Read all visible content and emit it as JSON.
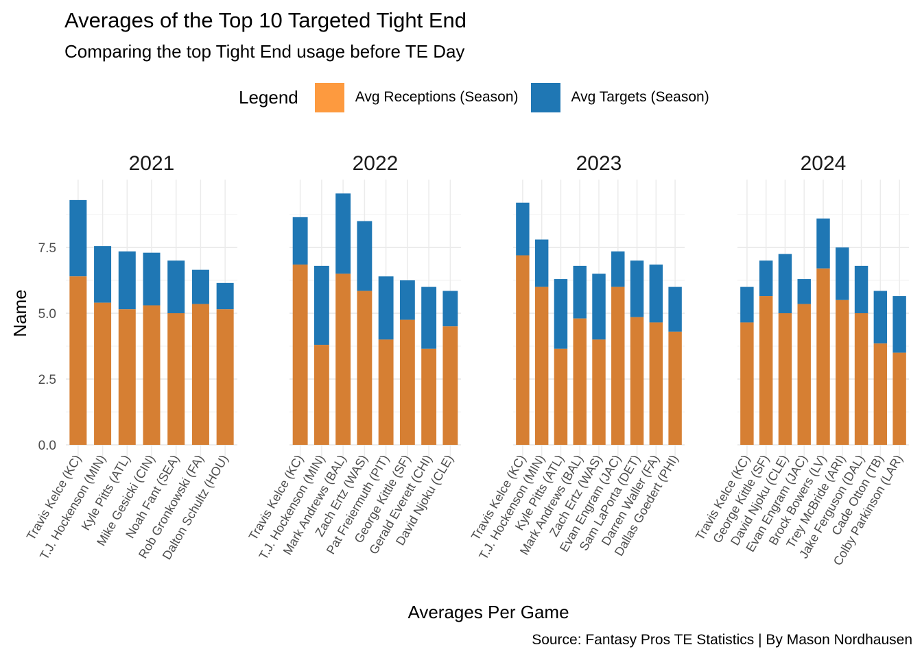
{
  "title": "Averages of the Top 10 Targeted Tight End",
  "subtitle": "Comparing the top Tight End usage before TE Day",
  "caption": "Source: Fantasy Pros TE Statistics | By Mason Nordhausen",
  "legend": {
    "title": "Legend",
    "items": [
      {
        "label": "Avg Receptions (Season)",
        "color": "#FD9A3F"
      },
      {
        "label": "Avg Targets (Season)",
        "color": "#1F77B4"
      }
    ]
  },
  "chart_data": {
    "type": "bar",
    "stacked": true,
    "xlabel": "Averages Per Game",
    "ylabel": "Name",
    "ylim": [
      0,
      9.6
    ],
    "yticks": [
      "0.0",
      "2.5",
      "5.0",
      "7.5"
    ],
    "grid": true,
    "legend_position": "top",
    "colors": {
      "receptions": "#D67F33",
      "targets": "#1F77B4"
    },
    "facets": [
      {
        "label": "2021",
        "categories": [
          "Travis Kelce (KC)",
          "T.J. Hockenson (MIN)",
          "Kyle Pitts (ATL)",
          "Mike Gesicki (CIN)",
          "Noah Fant (SEA)",
          "Rob Gronkowski (FA)",
          "Dalton Schultz (HOU)"
        ],
        "receptions": [
          6.4,
          5.4,
          5.15,
          5.3,
          5.0,
          5.35,
          5.15
        ],
        "targets": [
          9.3,
          7.55,
          7.35,
          7.3,
          7.0,
          6.65,
          6.15
        ]
      },
      {
        "label": "2022",
        "categories": [
          "Travis Kelce (KC)",
          "T.J. Hockenson (MIN)",
          "Mark Andrews (BAL)",
          "Zach Ertz (WAS)",
          "Pat Freiermuth (PIT)",
          "George Kittle (SF)",
          "Gerald Everett (CHI)",
          "David Njoku (CLE)"
        ],
        "receptions": [
          6.85,
          3.8,
          6.5,
          5.85,
          4.0,
          4.75,
          3.65,
          4.5
        ],
        "targets": [
          8.65,
          6.8,
          9.55,
          8.5,
          6.4,
          6.25,
          6.0,
          5.85
        ]
      },
      {
        "label": "2023",
        "categories": [
          "Travis Kelce (KC)",
          "T.J. Hockenson (MIN)",
          "Kyle Pitts (ATL)",
          "Mark Andrews (BAL)",
          "Zach Ertz (WAS)",
          "Evan Engram (JAC)",
          "Sam LaPorta (DET)",
          "Darren Waller (FA)",
          "Dallas Goedert (PHI)"
        ],
        "receptions": [
          7.2,
          6.0,
          3.65,
          4.8,
          4.0,
          6.0,
          4.85,
          4.65,
          4.3
        ],
        "targets": [
          9.2,
          7.8,
          6.3,
          6.8,
          6.5,
          7.35,
          7.0,
          6.85,
          6.0
        ]
      },
      {
        "label": "2024",
        "categories": [
          "Travis Kelce (KC)",
          "George Kittle (SF)",
          "David Njoku (CLE)",
          "Evan Engram (JAC)",
          "Brock Bowers (LV)",
          "Trey McBride (ARI)",
          "Jake Ferguson (DAL)",
          "Cade Otton (TB)",
          "Colby Parkinson (LAR)"
        ],
        "receptions": [
          4.65,
          5.65,
          5.0,
          5.35,
          6.7,
          5.5,
          5.0,
          3.85,
          3.5
        ],
        "targets": [
          6.0,
          7.0,
          7.25,
          6.3,
          8.6,
          7.5,
          6.8,
          5.85,
          5.65
        ]
      }
    ]
  }
}
